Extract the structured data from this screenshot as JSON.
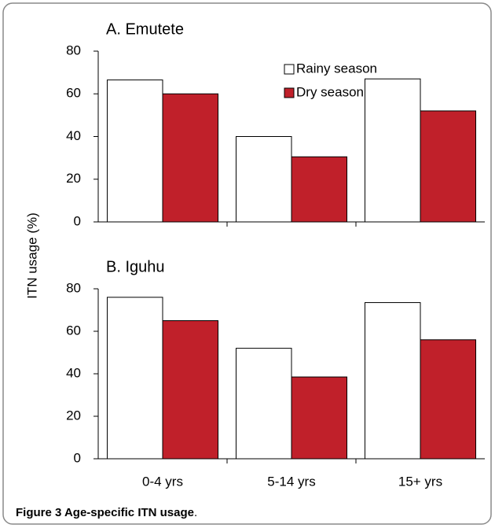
{
  "y_label": "ITN usage (%)",
  "chart_data": [
    {
      "type": "bar",
      "title": "A. Emutete",
      "series": [
        {
          "name": "Rainy season",
          "color": "#ffffff",
          "values": [
            66.5,
            40,
            67
          ]
        },
        {
          "name": "Dry season",
          "color": "#c0202a",
          "values": [
            60,
            30.5,
            52
          ]
        }
      ],
      "ylim": [
        0,
        80
      ],
      "yticks": [
        0,
        20,
        40,
        60,
        80
      ]
    },
    {
      "type": "bar",
      "title": "B. Iguhu",
      "categories": [
        "0-4 yrs",
        "5-14 yrs",
        "15+ yrs"
      ],
      "series": [
        {
          "color": "#ffffff",
          "values": [
            76,
            52,
            73.5
          ]
        },
        {
          "color": "#c0202a",
          "values": [
            65,
            38.5,
            56
          ]
        }
      ],
      "ylim": [
        0,
        80
      ],
      "yticks": [
        0,
        20,
        40,
        60,
        80
      ]
    }
  ],
  "caption": {
    "bold": "Figure 3 Age-specific ITN usage",
    "rest": "."
  }
}
